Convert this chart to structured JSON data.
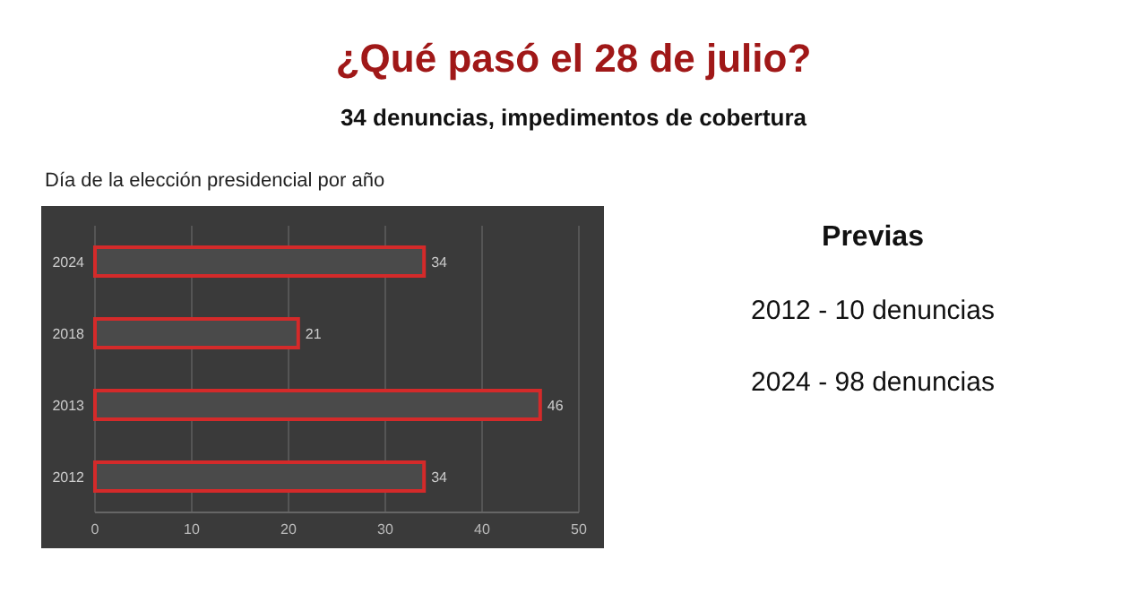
{
  "chart_data": [
    {
      "type": "bar",
      "orientation": "horizontal",
      "title": "¿Qué pasó el 28 de julio?",
      "subtitle": "34 denuncias, impedimentos de cobertura",
      "annotations": [
        "Día de la elección presidencial por año"
      ],
      "categories": [
        "2024",
        "2018",
        "2013",
        "2012"
      ],
      "series": [
        {
          "color": "#d42a2a",
          "values": [
            34,
            21,
            46,
            34
          ]
        }
      ],
      "xlim": [
        0,
        50
      ],
      "xticks": [
        0,
        10,
        20,
        30,
        40,
        50
      ],
      "grid": "x",
      "data_labels": true
    },
    {
      "type": "other",
      "title": "Previas",
      "annotations": [
        "2012 - 10 denuncias",
        "2024 - 98 denuncias"
      ]
    }
  ]
}
